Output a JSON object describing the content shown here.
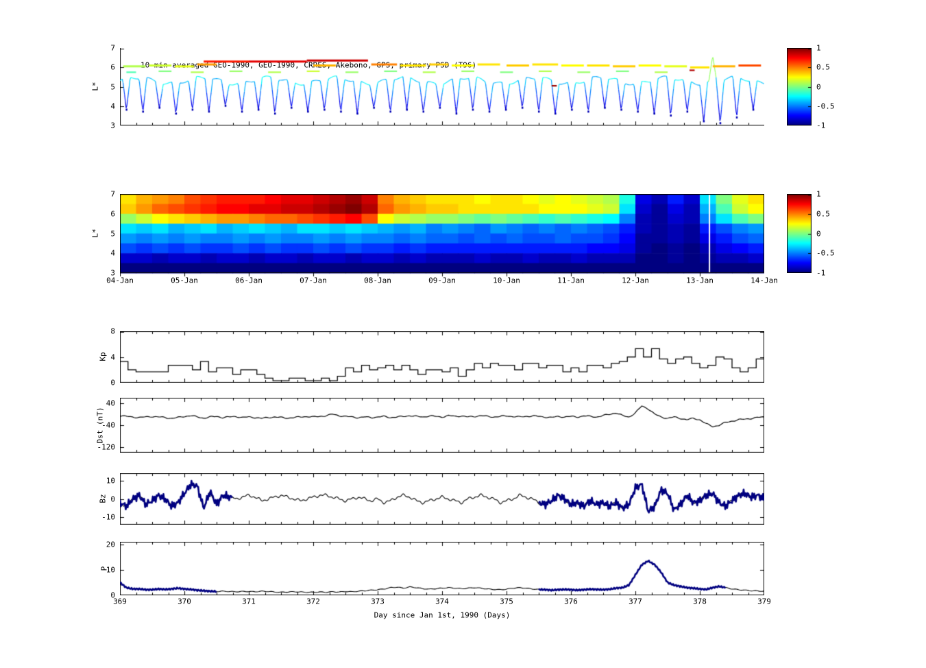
{
  "x_axis": {
    "ticks": [
      "369",
      "370",
      "371",
      "372",
      "373",
      "374",
      "375",
      "376",
      "377",
      "378",
      "379"
    ],
    "label": "Day since Jan 1st, 1990 (Days)"
  },
  "chart_data": [
    {
      "id": "psd_satellite_tracks",
      "type": "scatter",
      "title": "10-min averaged GEO-1990, GEO-1990, CRRES, Akebono, GPS, primary PSD (T96)",
      "ylabel": "L*",
      "ylim": [
        3,
        7
      ],
      "ytick_values": [
        7,
        6,
        5,
        4,
        3
      ],
      "yticks": [
        "7",
        "6",
        "5",
        "4",
        "3"
      ],
      "xlim_days": [
        0,
        10
      ],
      "colorbar": {
        "range": [
          -1,
          1
        ],
        "colormap": "jet",
        "ticks": [
          "1",
          "0.5",
          "0",
          "-0.5",
          "-1"
        ]
      },
      "orbit": {
        "start": 0.1,
        "period": 0.256,
        "top_l": 5.4,
        "depths": [
          3.8,
          3.7,
          3.9,
          3.6,
          3.8,
          3.7,
          4,
          3.7,
          3.8,
          3.6,
          3.9,
          3.7,
          3.8,
          3.7,
          3.6,
          3.9,
          3.7,
          3.8,
          3.7,
          3.9,
          3.6,
          3.8,
          3.7,
          3.8,
          3.9,
          3.7,
          3.6,
          3.8,
          3.7,
          3.9,
          3.8,
          3.7,
          3.6,
          3.5,
          3.7,
          3.2,
          3.1,
          3.4,
          3.8
        ]
      },
      "peak": {
        "x": 9.2,
        "l": 6.6,
        "hw": 0.06
      },
      "geo_segments": [
        [
          0.05,
          0.4,
          6.05,
          0.1
        ],
        [
          0.45,
          0.8,
          6.1,
          0.15
        ],
        [
          0.85,
          1.15,
          6.05,
          0.2
        ],
        [
          1.2,
          1.5,
          6.15,
          0.45
        ],
        [
          1.3,
          2.0,
          6.3,
          0.7
        ],
        [
          2.0,
          2.9,
          6.3,
          0.8
        ],
        [
          2.9,
          3.85,
          6.35,
          0.85
        ],
        [
          3.0,
          3.35,
          6.1,
          0.4
        ],
        [
          3.9,
          4.3,
          6.15,
          0.5
        ],
        [
          4.35,
          4.75,
          6.1,
          0.3
        ],
        [
          4.8,
          5.1,
          6.15,
          0.35
        ],
        [
          5.15,
          5.5,
          6.1,
          0.25
        ],
        [
          5.55,
          5.9,
          6.15,
          0.3
        ],
        [
          6.0,
          6.35,
          6.1,
          0.35
        ],
        [
          6.4,
          6.8,
          6.15,
          0.3
        ],
        [
          6.85,
          7.2,
          6.1,
          0.25
        ],
        [
          7.25,
          7.6,
          6.1,
          0.3
        ],
        [
          7.65,
          8.0,
          6.05,
          0.35
        ],
        [
          8.05,
          8.4,
          6.1,
          0.25
        ],
        [
          8.45,
          8.8,
          6.05,
          0.2
        ],
        [
          8.85,
          9.15,
          6.0,
          0.3
        ],
        [
          9.2,
          9.55,
          6.05,
          0.4
        ],
        [
          9.6,
          9.95,
          6.1,
          0.6
        ]
      ],
      "band_segments": [
        [
          0.1,
          0.25,
          5.75,
          -0.1
        ],
        [
          0.6,
          0.8,
          5.8,
          0
        ],
        [
          1.1,
          1.3,
          5.75,
          0.1
        ],
        [
          1.7,
          1.9,
          5.8,
          0.05
        ],
        [
          2.3,
          2.5,
          5.75,
          0.1
        ],
        [
          2.9,
          3.1,
          5.8,
          0.15
        ],
        [
          3.5,
          3.7,
          5.75,
          0.05
        ],
        [
          4.1,
          4.3,
          5.8,
          0
        ],
        [
          4.7,
          4.9,
          5.75,
          0.1
        ],
        [
          5.3,
          5.5,
          5.8,
          0.05
        ],
        [
          5.9,
          6.1,
          5.75,
          0
        ],
        [
          6.5,
          6.7,
          5.8,
          0.1
        ],
        [
          7.1,
          7.3,
          5.75,
          0.05
        ],
        [
          7.7,
          7.9,
          5.8,
          0
        ],
        [
          8.3,
          8.5,
          5.75,
          0.1
        ],
        [
          6.7,
          6.78,
          5.05,
          0.95
        ],
        [
          8.84,
          8.92,
          5.85,
          0.9
        ]
      ]
    },
    {
      "id": "psd_heatmap",
      "type": "heatmap",
      "ylabel": "L*",
      "ylim": [
        3,
        7
      ],
      "ytick_values": [
        7,
        6,
        5,
        4,
        3
      ],
      "yticks": [
        "7",
        "6",
        "5",
        "4",
        "3"
      ],
      "xticklabels": [
        "04-Jan",
        "05-Jan",
        "06-Jan",
        "07-Jan",
        "08-Jan",
        "09-Jan",
        "10-Jan",
        "11-Jan",
        "12-Jan",
        "13-Jan",
        "14-Jan"
      ],
      "colorbar": {
        "range": [
          -1,
          1
        ],
        "colormap": "jet",
        "ticks": [
          "1",
          "0.5",
          "0",
          "-0.5",
          "-1"
        ]
      },
      "gap_days": [
        9.15
      ],
      "grid": [
        [
          0.3,
          0.4,
          0.45,
          0.5,
          0.6,
          0.65,
          0.7,
          0.7,
          0.7,
          0.75,
          0.8,
          0.8,
          0.85,
          0.9,
          0.95,
          0.85,
          0.5,
          0.4,
          0.35,
          0.3,
          0.3,
          0.3,
          0.25,
          0.3,
          0.3,
          0.25,
          0.2,
          0.25,
          0.2,
          0.15,
          0.1,
          -0.2,
          -0.8,
          -0.9,
          -0.7,
          -0.85,
          -0.3,
          0,
          0.2,
          0.3
        ],
        [
          0.35,
          0.45,
          0.55,
          0.6,
          0.65,
          0.7,
          0.75,
          0.75,
          0.8,
          0.8,
          0.85,
          0.85,
          0.9,
          0.95,
          1,
          0.9,
          0.55,
          0.45,
          0.4,
          0.35,
          0.35,
          0.3,
          0.3,
          0.3,
          0.3,
          0.3,
          0.25,
          0.25,
          0.25,
          0.2,
          0.15,
          -0.3,
          -0.85,
          -0.95,
          -0.8,
          -0.9,
          -0.4,
          -0.1,
          0.15,
          0.25
        ],
        [
          0.05,
          0.15,
          0.25,
          0.3,
          0.35,
          0.4,
          0.45,
          0.45,
          0.5,
          0.55,
          0.55,
          0.6,
          0.65,
          0.7,
          0.75,
          0.6,
          0.25,
          0.15,
          0.1,
          0.05,
          0.05,
          0,
          -0.05,
          0,
          -0.05,
          -0.1,
          -0.15,
          -0.1,
          -0.15,
          -0.2,
          -0.25,
          -0.5,
          -0.9,
          -0.95,
          -0.85,
          -0.9,
          -0.5,
          -0.3,
          -0.1,
          0
        ],
        [
          -0.3,
          -0.35,
          -0.3,
          -0.4,
          -0.35,
          -0.3,
          -0.4,
          -0.35,
          -0.3,
          -0.35,
          -0.4,
          -0.3,
          -0.3,
          -0.35,
          -0.3,
          -0.35,
          -0.4,
          -0.45,
          -0.4,
          -0.5,
          -0.45,
          -0.5,
          -0.55,
          -0.45,
          -0.5,
          -0.55,
          -0.5,
          -0.55,
          -0.5,
          -0.55,
          -0.6,
          -0.7,
          -0.9,
          -0.95,
          -0.9,
          -0.95,
          -0.7,
          -0.6,
          -0.5,
          -0.45
        ],
        [
          -0.45,
          -0.5,
          -0.45,
          -0.5,
          -0.45,
          -0.5,
          -0.5,
          -0.45,
          -0.5,
          -0.45,
          -0.5,
          -0.5,
          -0.45,
          -0.5,
          -0.45,
          -0.5,
          -0.5,
          -0.55,
          -0.5,
          -0.55,
          -0.55,
          -0.6,
          -0.55,
          -0.6,
          -0.55,
          -0.6,
          -0.6,
          -0.55,
          -0.6,
          -0.6,
          -0.65,
          -0.75,
          -0.95,
          -0.95,
          -0.9,
          -0.95,
          -0.8,
          -0.7,
          -0.6,
          -0.55
        ],
        [
          -0.6,
          -0.65,
          -0.6,
          -0.65,
          -0.6,
          -0.65,
          -0.65,
          -0.6,
          -0.65,
          -0.6,
          -0.65,
          -0.65,
          -0.6,
          -0.65,
          -0.6,
          -0.65,
          -0.65,
          -0.7,
          -0.65,
          -0.7,
          -0.7,
          -0.7,
          -0.7,
          -0.7,
          -0.7,
          -0.7,
          -0.7,
          -0.7,
          -0.7,
          -0.75,
          -0.75,
          -0.8,
          -0.95,
          -1,
          -0.95,
          -1,
          -0.9,
          -0.8,
          -0.75,
          -0.7
        ],
        [
          -0.85,
          -0.85,
          -0.9,
          -0.85,
          -0.85,
          -0.9,
          -0.85,
          -0.85,
          -0.9,
          -0.85,
          -0.85,
          -0.9,
          -0.85,
          -0.85,
          -0.9,
          -0.85,
          -0.85,
          -0.9,
          -0.85,
          -0.9,
          -0.9,
          -0.9,
          -0.85,
          -0.9,
          -0.9,
          -0.85,
          -0.9,
          -0.9,
          -0.85,
          -0.9,
          -0.9,
          -0.9,
          -1,
          -1,
          -0.95,
          -1,
          -0.95,
          -0.9,
          -0.9,
          -0.85
        ],
        [
          -1,
          -1,
          -1,
          -1,
          -1,
          -1,
          -1,
          -1,
          -1,
          -1,
          -1,
          -1,
          -1,
          -1,
          -1,
          -1,
          -1,
          -1,
          -1,
          -1,
          -1,
          -1,
          -1,
          -1,
          -1,
          -1,
          -1,
          -1,
          -1,
          -1,
          -1,
          -1,
          -1,
          -1,
          -1,
          -1,
          -1,
          -1,
          -1,
          -1
        ]
      ]
    },
    {
      "id": "kp",
      "type": "line",
      "style": "step",
      "ylabel": "Kp",
      "ylim": [
        0,
        8
      ],
      "ytick_values": [
        8,
        4,
        0
      ],
      "yticks": [
        "8",
        "4",
        "0"
      ],
      "x_start": 369,
      "x_step": 0.125,
      "values": [
        3.3,
        2,
        1.7,
        1.7,
        1.7,
        1.7,
        2.7,
        2.7,
        2.7,
        2,
        3.3,
        1.7,
        2.3,
        2.3,
        1.3,
        2,
        2,
        1.3,
        0.7,
        0.3,
        0.3,
        0.7,
        0.7,
        0.3,
        0.3,
        0.7,
        0.3,
        1,
        2.3,
        1.7,
        2.7,
        2,
        2.3,
        2.7,
        2,
        2.7,
        2,
        1.3,
        2,
        2,
        1.7,
        2.3,
        1,
        2,
        3,
        2.3,
        3,
        2.7,
        2.7,
        2,
        3,
        3,
        2.3,
        2.7,
        2.7,
        1.7,
        2.3,
        1.7,
        2.7,
        2.7,
        2.3,
        3,
        3.3,
        4,
        5.3,
        4,
        5.3,
        3.7,
        3,
        3.7,
        4,
        3,
        2.3,
        2.7,
        4,
        3.7,
        2.3,
        1.7,
        2.3,
        3.7
      ]
    },
    {
      "id": "dst",
      "type": "line",
      "ylabel": "Dst (nT)",
      "ylim": [
        -140,
        60
      ],
      "ytick_values": [
        40,
        -40,
        -120
      ],
      "yticks": [
        "40",
        "-40",
        "-120"
      ],
      "x_start": 369,
      "x_step": 0.1,
      "values": [
        -5,
        -8,
        -10,
        -12,
        -10,
        -8,
        -10,
        -12,
        -15,
        -12,
        -8,
        -5,
        -10,
        -14,
        -10,
        -8,
        -12,
        -10,
        -8,
        -12,
        -10,
        -12,
        -15,
        -12,
        -10,
        -12,
        -14,
        -12,
        -10,
        -8,
        -10,
        -8,
        -5,
        0,
        -5,
        -8,
        -10,
        -12,
        -10,
        -12,
        -10,
        -8,
        -12,
        -10,
        -8,
        -5,
        -8,
        -10,
        -6,
        -8,
        -10,
        -5,
        -8,
        -6,
        -10,
        -8,
        -5,
        -8,
        -10,
        -8,
        -6,
        -8,
        -10,
        -8,
        -6,
        -8,
        -10,
        -12,
        -8,
        -10,
        -8,
        -10,
        -6,
        -8,
        -10,
        -5,
        0,
        5,
        -5,
        -10,
        5,
        30,
        20,
        0,
        -10,
        -15,
        -10,
        -15,
        -20,
        -15,
        -20,
        -35,
        -45,
        -40,
        -30,
        -25,
        -20,
        -18,
        -15,
        -12,
        -10
      ]
    },
    {
      "id": "bz",
      "type": "line",
      "ylabel": "Bz",
      "ylim": [
        -14,
        14
      ],
      "ytick_values": [
        10,
        0,
        -10
      ],
      "yticks": [
        "10",
        "0",
        "-10"
      ],
      "x_start": 369,
      "x_step": 0.1,
      "highlight_color": "#000080",
      "highlight_segments": [
        [
          369,
          370.75
        ],
        [
          375.5,
          379
        ]
      ],
      "values": [
        -2,
        -4,
        0,
        2,
        -3,
        -1,
        2,
        0,
        -4,
        -2,
        3,
        8,
        7,
        -5,
        4,
        -3,
        2,
        1,
        0,
        1,
        2,
        1,
        -1,
        0,
        1,
        2,
        1,
        0,
        -1,
        0,
        1,
        2,
        2,
        1,
        0,
        -1,
        0,
        1,
        0,
        -1,
        0,
        -2,
        -1,
        1,
        2,
        1,
        -1,
        -2,
        -1,
        0,
        1,
        0,
        -1,
        -2,
        0,
        1,
        2,
        1,
        0,
        -2,
        -1,
        0,
        2,
        1,
        0,
        -2,
        -3,
        -1,
        2,
        0,
        -3,
        -2,
        -4,
        -1,
        -3,
        -2,
        -4,
        -2,
        -5,
        -3,
        6,
        8,
        -7,
        -4,
        5,
        3,
        -6,
        -3,
        2,
        -2,
        -1,
        2,
        3,
        -2,
        -4,
        -1,
        2,
        3,
        1,
        2,
        0
      ]
    },
    {
      "id": "p",
      "type": "line",
      "ylabel": "P",
      "ylim": [
        0,
        21
      ],
      "ytick_values": [
        20,
        10,
        0
      ],
      "yticks": [
        "20",
        "10",
        "0"
      ],
      "x_start": 369,
      "x_step": 0.1,
      "highlight_color": "#000080",
      "highlight_segments": [
        [
          369,
          370.5
        ],
        [
          375.5,
          378.4
        ]
      ],
      "values": [
        5,
        3,
        2.5,
        2.5,
        2.2,
        2.2,
        2.5,
        2.3,
        2.5,
        2.8,
        2.5,
        2.3,
        2,
        1.8,
        1.6,
        1.5,
        1.6,
        1.5,
        1.4,
        1.5,
        1.5,
        1.4,
        1.6,
        1.5,
        1.3,
        1.2,
        1.3,
        1.4,
        1.3,
        1.2,
        1.2,
        1.3,
        1.2,
        1.4,
        1.3,
        1.5,
        1.4,
        1.6,
        1.8,
        2,
        2.2,
        2.5,
        3,
        3.2,
        2.8,
        3.3,
        3,
        2.6,
        2.4,
        2.6,
        2.8,
        3,
        2.8,
        2.6,
        2.8,
        3,
        2.8,
        2.5,
        2.3,
        2.2,
        2.4,
        2.8,
        3,
        2.8,
        2.5,
        2.3,
        2.2,
        2,
        2.2,
        2.3,
        2.2,
        2,
        2.2,
        2.4,
        2.3,
        2.2,
        2.4,
        2.8,
        3,
        4,
        8,
        12,
        13.5,
        12,
        9,
        5,
        4,
        3.5,
        3,
        2.8,
        2.5,
        2.3,
        3,
        3.5,
        3,
        2.5,
        2.2,
        2,
        1.8,
        1.7,
        1.6
      ]
    }
  ]
}
